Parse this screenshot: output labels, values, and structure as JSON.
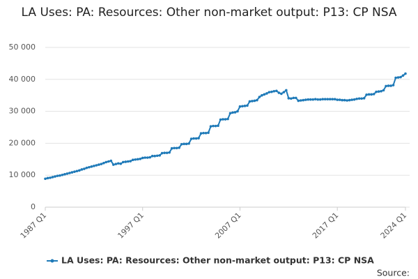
{
  "chart_data": {
    "type": "line",
    "title": "LA Uses: PA: Resources: Other non-market output: P13: CP NSA",
    "source": "Source:",
    "categories": [
      "1987 Q1",
      null,
      null,
      null,
      null,
      null,
      null,
      null,
      null,
      null,
      null,
      null,
      null,
      null,
      null,
      null,
      null,
      null,
      null,
      null,
      null,
      null,
      null,
      null,
      null,
      null,
      null,
      null,
      null,
      null,
      null,
      null,
      null,
      null,
      null,
      null,
      null,
      null,
      null,
      null,
      "1997 Q1",
      null,
      null,
      null,
      null,
      null,
      null,
      null,
      null,
      null,
      null,
      null,
      null,
      null,
      null,
      null,
      null,
      null,
      null,
      null,
      null,
      null,
      null,
      null,
      null,
      null,
      null,
      null,
      null,
      null,
      null,
      null,
      null,
      null,
      null,
      null,
      null,
      null,
      null,
      null,
      "2007 Q1",
      null,
      null,
      null,
      null,
      null,
      null,
      null,
      null,
      null,
      null,
      null,
      null,
      null,
      null,
      null,
      null,
      null,
      null,
      null,
      null,
      null,
      null,
      null,
      null,
      null,
      null,
      null,
      null,
      null,
      null,
      null,
      null,
      null,
      null,
      null,
      null,
      null,
      null,
      null,
      "2017 Q1",
      null,
      null,
      null,
      null,
      null,
      null,
      null,
      null,
      null,
      null,
      null,
      null,
      null,
      null,
      null,
      null,
      null,
      null,
      null,
      null,
      null,
      null,
      null,
      null,
      null,
      null,
      null,
      "2024 Q1"
    ],
    "series": [
      {
        "name": "LA Uses: PA: Resources: Other non-market output: P13: CP NSA",
        "color": "#1f7ab8",
        "values": [
          8900,
          9100,
          9200,
          9400,
          9600,
          9800,
          9900,
          10100,
          10300,
          10500,
          10700,
          10900,
          11100,
          11300,
          11500,
          11800,
          12000,
          12300,
          12500,
          12700,
          12900,
          13100,
          13300,
          13500,
          13800,
          14100,
          14300,
          14500,
          13300,
          13500,
          13700,
          13600,
          14100,
          14200,
          14300,
          14400,
          14800,
          14900,
          15000,
          15100,
          15400,
          15500,
          15500,
          15600,
          16000,
          16000,
          16100,
          16200,
          16900,
          17000,
          17000,
          17100,
          18400,
          18500,
          18500,
          18600,
          19700,
          19800,
          19800,
          19900,
          21400,
          21500,
          21500,
          21600,
          23100,
          23200,
          23200,
          23300,
          25300,
          25400,
          25400,
          25500,
          27400,
          27500,
          27500,
          27600,
          29400,
          29600,
          29700,
          30000,
          31500,
          31600,
          31700,
          31800,
          33100,
          33200,
          33300,
          33500,
          34500,
          35000,
          35300,
          35600,
          36000,
          36100,
          36300,
          36400,
          35800,
          35500,
          36000,
          36600,
          34100,
          34000,
          34200,
          34200,
          33300,
          33400,
          33500,
          33600,
          33700,
          33700,
          33700,
          33800,
          33700,
          33700,
          33800,
          33800,
          33800,
          33800,
          33800,
          33800,
          33600,
          33600,
          33500,
          33500,
          33400,
          33500,
          33600,
          33700,
          33900,
          34000,
          34000,
          34100,
          35200,
          35300,
          35300,
          35400,
          36100,
          36200,
          36300,
          36600,
          37900,
          38000,
          38000,
          38200,
          40500,
          40600,
          40700,
          41200,
          41800
        ]
      }
    ],
    "ylim": [
      0,
      50000
    ],
    "yticks": [
      0,
      {
        "value": 10000,
        "label": "10 000"
      },
      {
        "value": 20000,
        "label": "20 000"
      },
      {
        "value": 30000,
        "label": "30 000"
      },
      {
        "value": 40000,
        "label": "40 000"
      },
      {
        "value": 50000,
        "label": "50 000"
      }
    ],
    "grid": true
  }
}
